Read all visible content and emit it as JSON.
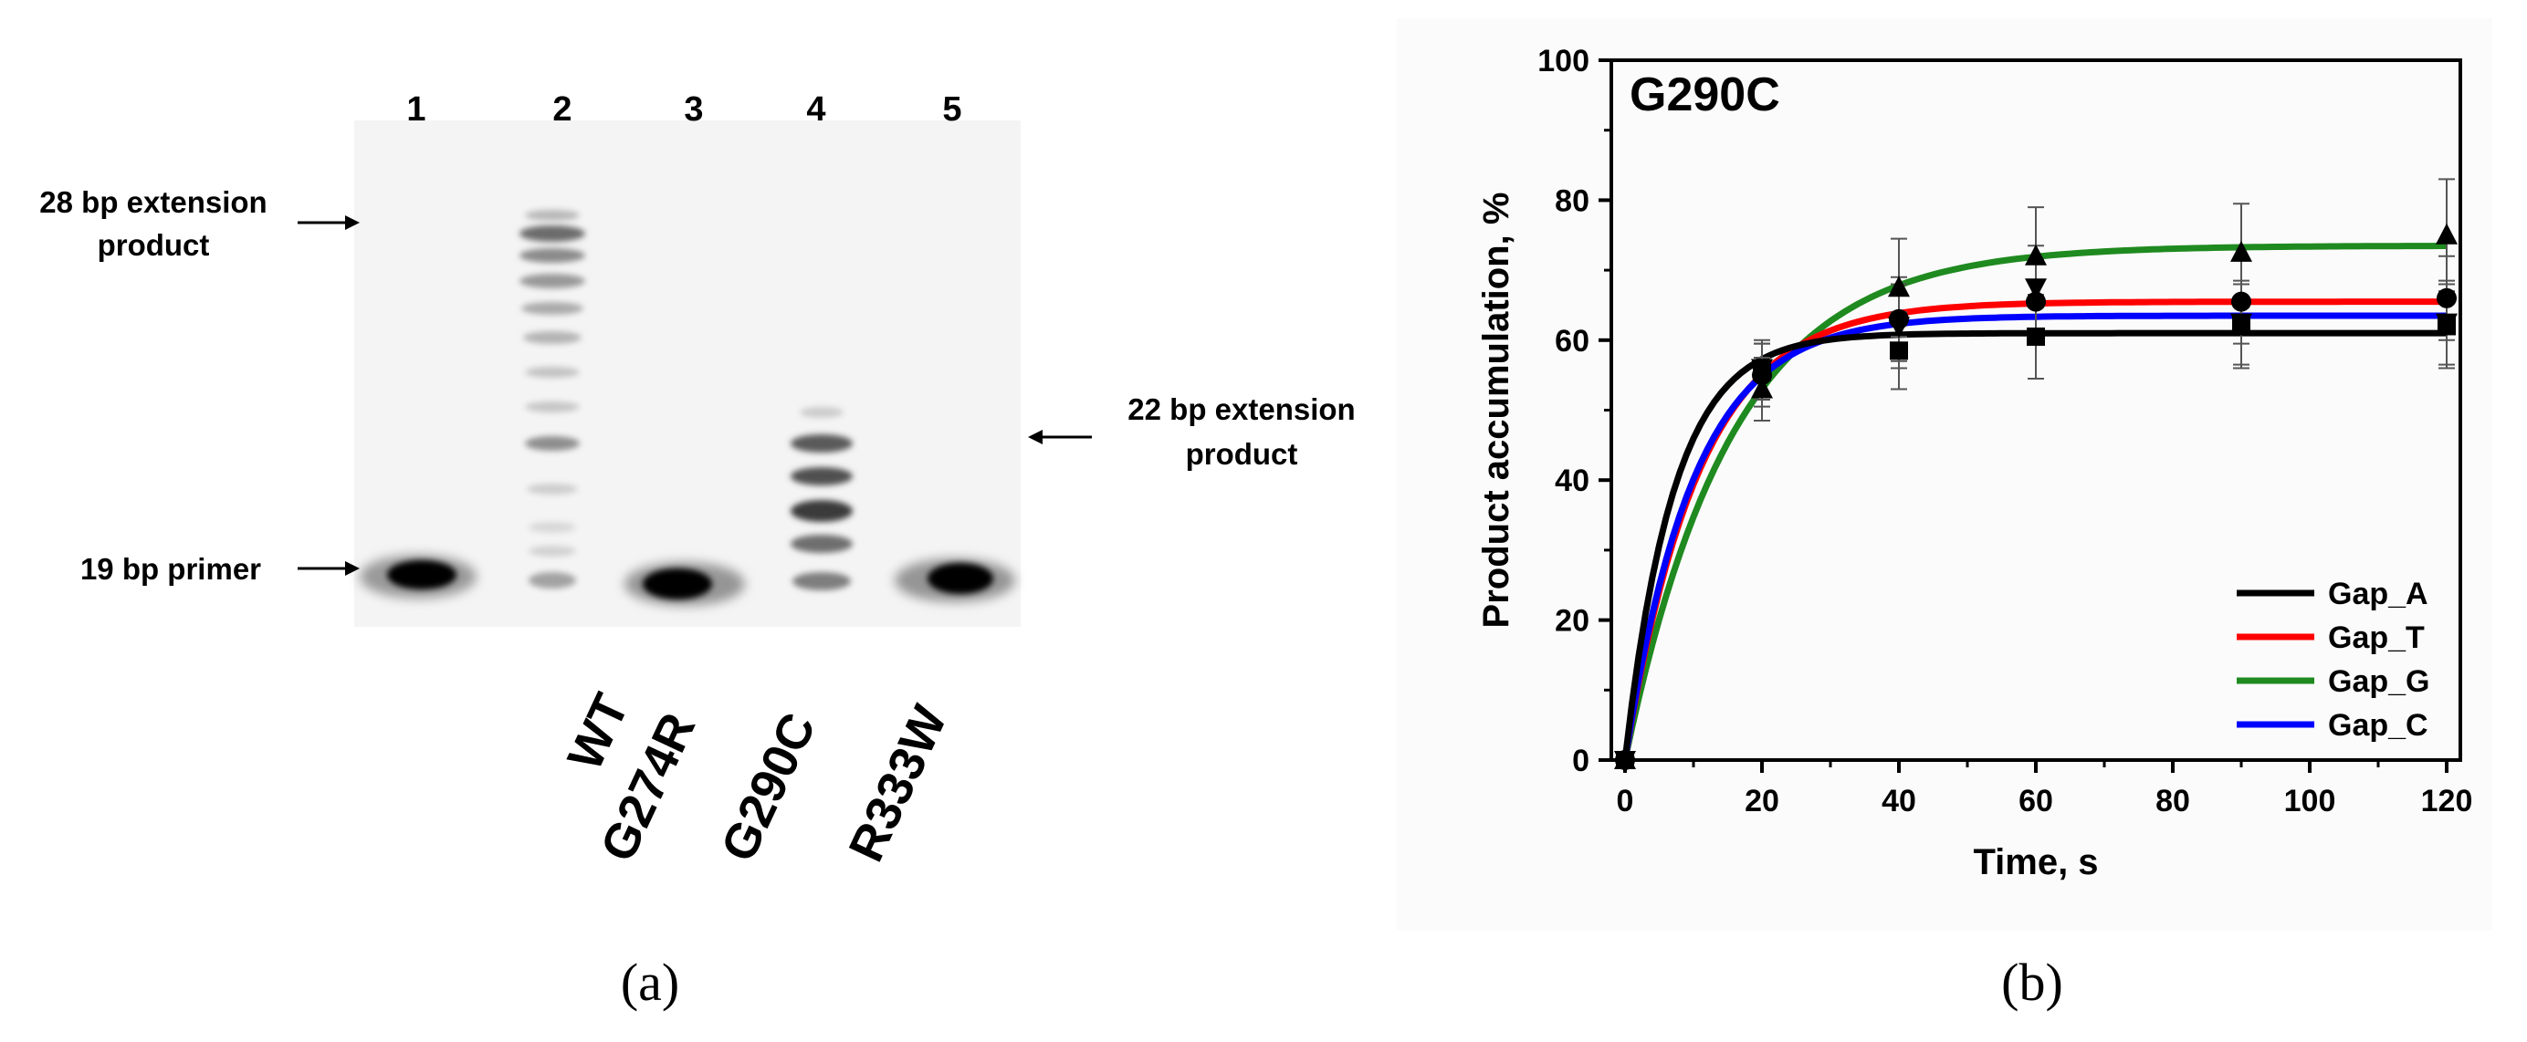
{
  "gel": {
    "lane_numbers": [
      "1",
      "2",
      "3",
      "4",
      "5"
    ],
    "lane_labels": [
      "WT",
      "G274R",
      "G290C",
      "R333W"
    ],
    "annotations": {
      "ext28_line1": "28 bp extension",
      "ext28_line2": "product",
      "ext22_line1": "22 bp extension",
      "ext22_line2": "product",
      "primer19": "19 bp primer"
    },
    "caption": "(a)"
  },
  "chart_data": {
    "type": "line",
    "title": "G290C",
    "xlabel": "Time, s",
    "ylabel": "Product accumulation, %",
    "xlim": [
      -2,
      122
    ],
    "ylim": [
      0,
      100
    ],
    "xticks": [
      0,
      20,
      40,
      60,
      80,
      100,
      120
    ],
    "yticks": [
      0,
      20,
      40,
      60,
      80,
      100
    ],
    "legend_position": "bottom-right",
    "caption": "(b)",
    "series": [
      {
        "name": "Gap_A",
        "color": "#000000",
        "marker": "square",
        "x": [
          0,
          20,
          40,
          60,
          90,
          120
        ],
        "y": [
          0,
          55.5,
          58.5,
          60.5,
          62,
          62
        ],
        "err": [
          0,
          4,
          5.5,
          6,
          6,
          6
        ],
        "fit": {
          "plateau": 61,
          "k": 0.14
        }
      },
      {
        "name": "Gap_T",
        "color": "#ff0000",
        "marker": "circle",
        "x": [
          0,
          20,
          40,
          60,
          90,
          120
        ],
        "y": [
          0,
          55,
          63,
          65.5,
          65.5,
          66
        ],
        "err": [
          0,
          4.5,
          6,
          6,
          6,
          6
        ],
        "fit": {
          "plateau": 65.5,
          "k": 0.092
        }
      },
      {
        "name": "Gap_G",
        "color": "#1f8a1f",
        "marker": "triangle-up",
        "x": [
          0,
          20,
          40,
          60,
          90,
          120
        ],
        "y": [
          0,
          53,
          67.5,
          72,
          72.5,
          75
        ],
        "err": [
          0,
          4.5,
          7,
          7,
          7,
          8
        ],
        "fit": {
          "plateau": 73.5,
          "k": 0.064
        }
      },
      {
        "name": "Gap_C",
        "color": "#0000ff",
        "marker": "triangle-down",
        "x": [
          0,
          20,
          40,
          60,
          90,
          120
        ],
        "y": [
          0,
          56,
          62,
          67.5,
          62.5,
          62.5
        ],
        "err": [
          0,
          4,
          6,
          6,
          6,
          6
        ],
        "fit": {
          "plateau": 63.5,
          "k": 0.1
        }
      }
    ]
  }
}
